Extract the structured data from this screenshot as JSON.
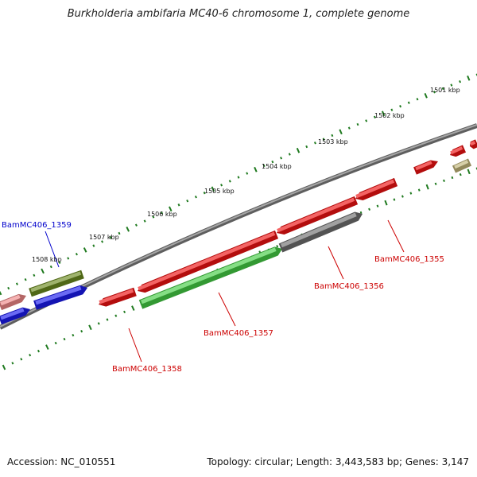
{
  "title": "Burkholderia ambifaria MC40-6 chromosome 1, complete genome",
  "footer": {
    "accession": "Accession: NC_010551",
    "stats": "Topology: circular; Length: 3,443,583 bp; Genes: 3,147"
  },
  "colors": {
    "backbone": "#808080",
    "tick": "#1f7a1f",
    "forward_gene": "#ee1111",
    "reverse_gene": "#1a1aee",
    "rna_gene": "#44cc44",
    "pseudo_gene": "#6e6e6e",
    "pale_gene": "#f08888",
    "olive_gene": "#6b8a1e",
    "khaki_gene": "#c2b67a",
    "label_red": "#cc0000",
    "label_blue": "#0000cc"
  },
  "kbp_labels": [
    "1501 kbp",
    "1502 kbp",
    "1503 kbp",
    "1504 kbp",
    "1505 kbp",
    "1506 kbp",
    "1507 kbp",
    "1508 kbp"
  ],
  "gene_labels": [
    {
      "text": "BamMC406_1355",
      "color": "label_red"
    },
    {
      "text": "BamMC406_1356",
      "color": "label_red"
    },
    {
      "text": "BamMC406_1357",
      "color": "label_red"
    },
    {
      "text": "BamMC406_1358",
      "color": "label_red"
    },
    {
      "text": "BamMC406_1359",
      "color": "label_blue"
    }
  ]
}
